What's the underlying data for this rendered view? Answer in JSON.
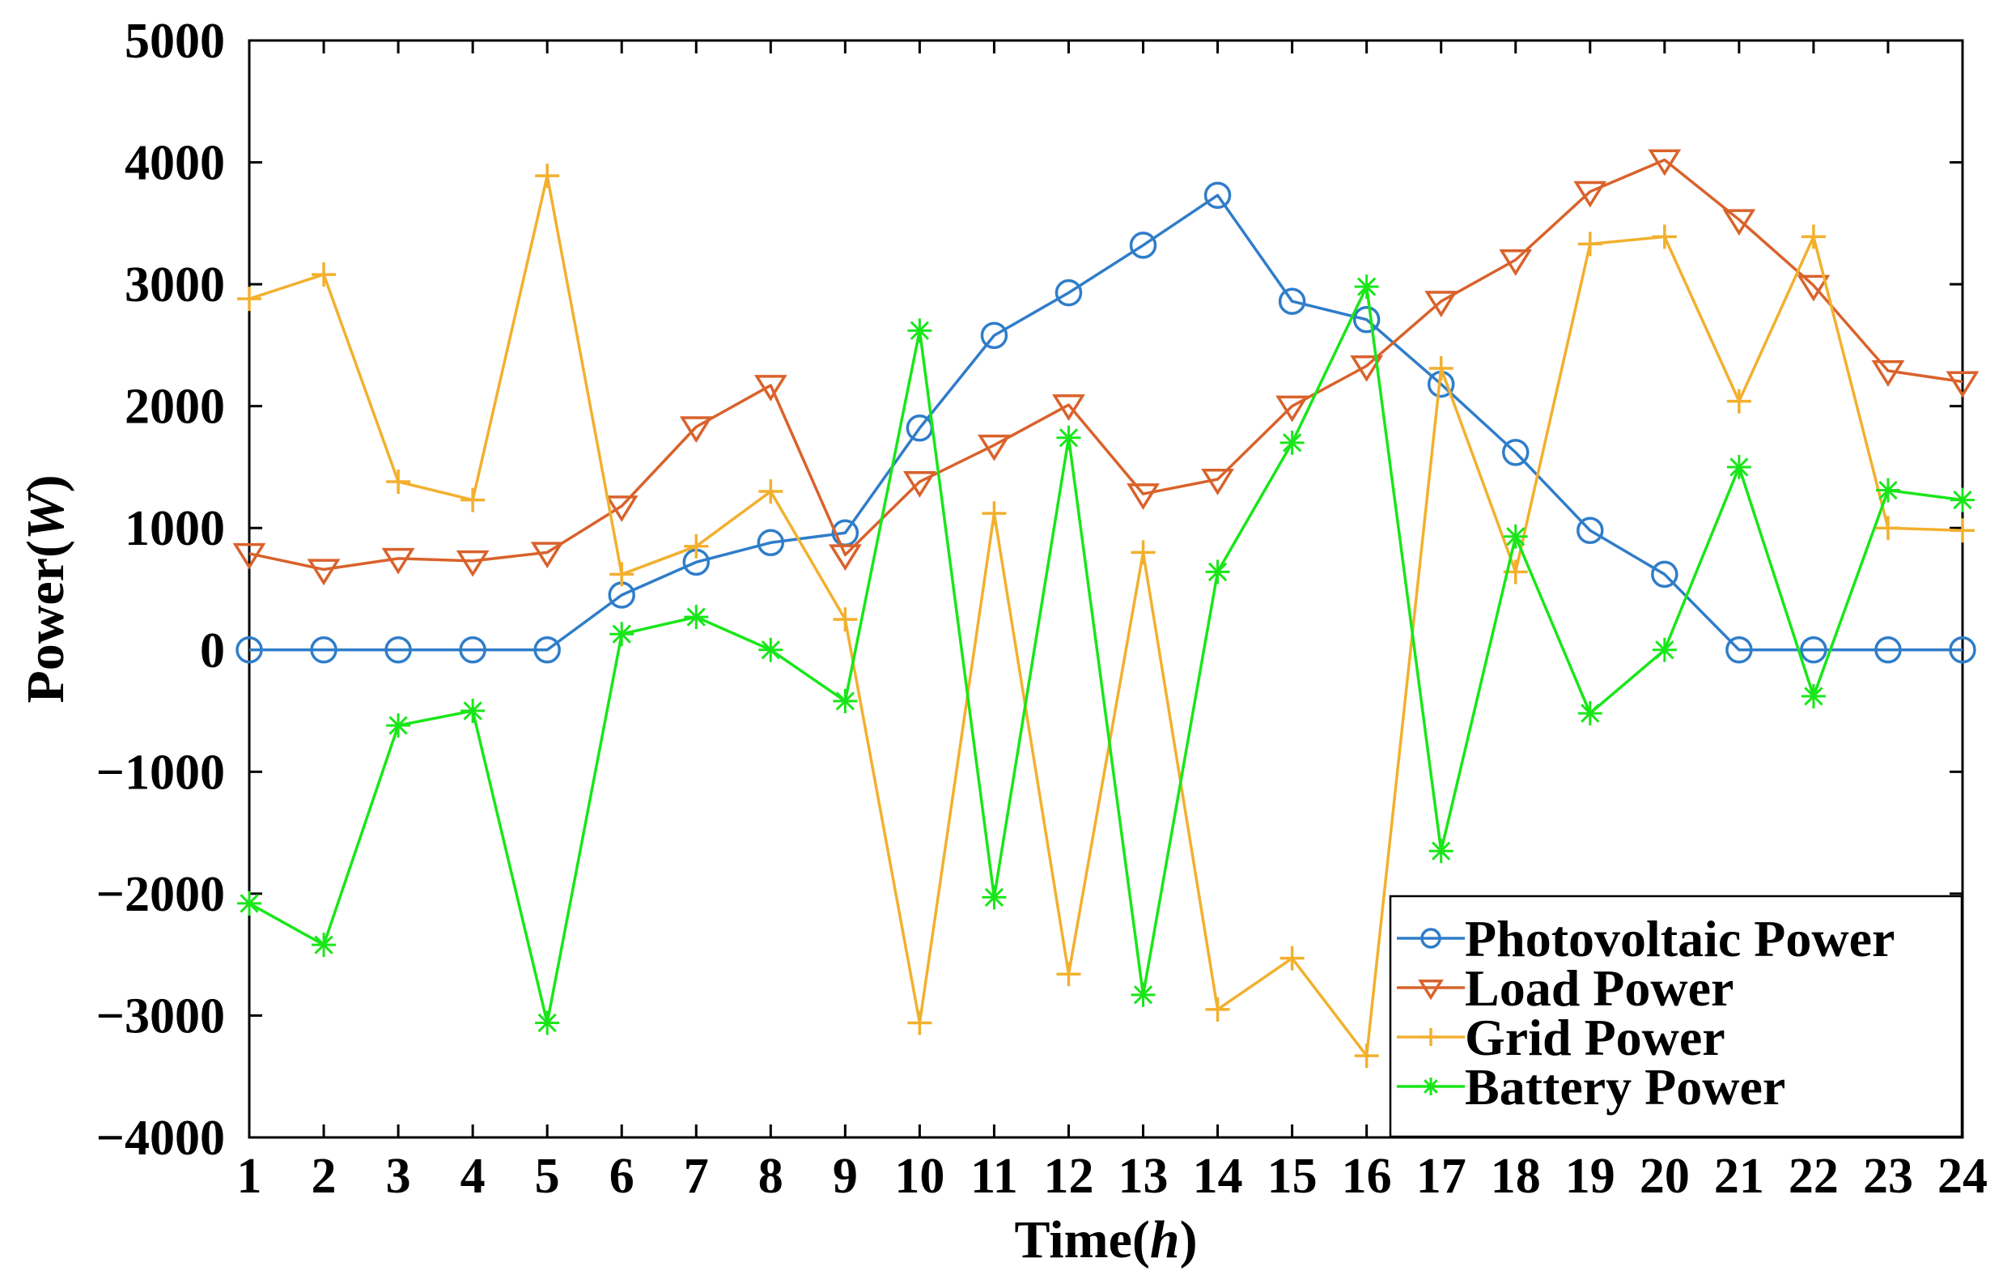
{
  "chart_data": {
    "type": "line",
    "xlabel": "Time",
    "xlabel_unit": "h",
    "ylabel": "Power",
    "ylabel_unit": "W",
    "x": [
      1,
      2,
      3,
      4,
      5,
      6,
      7,
      8,
      9,
      10,
      11,
      12,
      13,
      14,
      15,
      16,
      17,
      18,
      19,
      20,
      21,
      22,
      23,
      24
    ],
    "xlim": [
      1,
      24
    ],
    "ylim": [
      -4000,
      5000
    ],
    "yticks": [
      5000,
      4000,
      3000,
      2000,
      1000,
      0,
      -1000,
      -2000,
      -3000,
      -4000
    ],
    "ytick_labels": [
      "5000",
      "4000",
      "3000",
      "2000",
      "1000",
      "0",
      "−1000",
      "−2000",
      "−3000",
      "−4000"
    ],
    "grid": false,
    "legend_position": "bottom-right",
    "series": [
      {
        "name": "Photovoltaic Power",
        "color": "#2f7dc9",
        "marker": "circle",
        "values": [
          0,
          0,
          0,
          0,
          0,
          450,
          720,
          880,
          960,
          1820,
          2580,
          2930,
          3320,
          3730,
          2860,
          2710,
          2180,
          1620,
          980,
          620,
          0,
          0,
          0,
          0
        ]
      },
      {
        "name": "Load Power",
        "color": "#d9622b",
        "marker": "triangle-down",
        "values": [
          790,
          660,
          750,
          730,
          800,
          1180,
          1830,
          2170,
          780,
          1380,
          1680,
          2010,
          1280,
          1400,
          2000,
          2330,
          2860,
          3200,
          3760,
          4020,
          3530,
          2990,
          2290,
          2200
        ]
      },
      {
        "name": "Grid Power",
        "color": "#f2b02e",
        "marker": "plus",
        "values": [
          2880,
          3080,
          1380,
          1230,
          3890,
          620,
          850,
          1300,
          250,
          -3060,
          1120,
          -2660,
          800,
          -2950,
          -2530,
          -3330,
          2310,
          640,
          3330,
          3390,
          2040,
          3390,
          1000,
          980
        ]
      },
      {
        "name": "Battery Power",
        "color": "#19e619",
        "marker": "asterisk",
        "values": [
          -2080,
          -2420,
          -620,
          -500,
          -3060,
          130,
          270,
          0,
          -420,
          2620,
          -2030,
          1740,
          -2830,
          640,
          1700,
          2980,
          -1650,
          930,
          -520,
          0,
          1500,
          -380,
          1310,
          1230
        ]
      }
    ]
  }
}
